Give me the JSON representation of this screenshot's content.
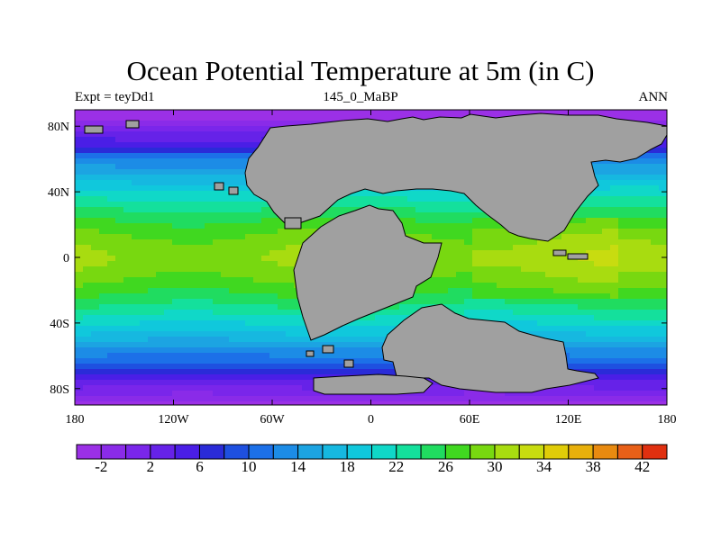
{
  "title": "Ocean Potential Temperature at 5m (in C)",
  "subtitle_left": "Expt = teyDd1",
  "subtitle_center": "145_0_MaBP",
  "subtitle_right": "ANN",
  "chart_data": {
    "type": "heatmap",
    "title": "Ocean Potential Temperature at 5m (in C)",
    "variable": "Ocean Potential Temperature at 5m",
    "units": "C",
    "experiment": "teyDd1",
    "period": "145_0_MaBP",
    "season": "ANN",
    "xlim": [
      -180,
      180
    ],
    "ylim": [
      -90,
      90
    ],
    "x_ticks": [
      {
        "value": -180,
        "label": "180"
      },
      {
        "value": -120,
        "label": "120W"
      },
      {
        "value": -60,
        "label": "60W"
      },
      {
        "value": 0,
        "label": "0"
      },
      {
        "value": 60,
        "label": "60E"
      },
      {
        "value": 120,
        "label": "120E"
      },
      {
        "value": 180,
        "label": "180"
      }
    ],
    "y_ticks": [
      {
        "value": 80,
        "label": "80N"
      },
      {
        "value": 40,
        "label": "40N"
      },
      {
        "value": 0,
        "label": "0"
      },
      {
        "value": -40,
        "label": "40S"
      },
      {
        "value": -80,
        "label": "80S"
      }
    ],
    "colorbar": {
      "levels": [
        -4,
        -2,
        0,
        2,
        4,
        6,
        8,
        10,
        12,
        14,
        16,
        18,
        20,
        22,
        24,
        26,
        28,
        30,
        32,
        34,
        36,
        38,
        40,
        42,
        44
      ],
      "labels": [
        "-2",
        "2",
        "6",
        "10",
        "14",
        "18",
        "22",
        "26",
        "30",
        "34",
        "38",
        "42"
      ],
      "colors": [
        "#9b30e6",
        "#8a2be8",
        "#7a26ea",
        "#6622e8",
        "#4a1ee6",
        "#2a2bd8",
        "#1e50e0",
        "#1c70e8",
        "#1c8ce6",
        "#1ca4e2",
        "#16b8e0",
        "#10c8dc",
        "#10d8c8",
        "#14e09c",
        "#20dc60",
        "#40d820",
        "#78d810",
        "#a8dc10",
        "#c8dc10",
        "#e0cc08",
        "#e8b00c",
        "#e88a10",
        "#e86018",
        "#e03010"
      ],
      "land_color": "#a0a0a0"
    },
    "field_description": "Zonal-mean-like SST: near -2 to 2 C at the poles, about 22-28 C in the subtropics, 28-32 C near the equator; land masses (Laurasia in the north, Gondwana in the south) masked grey."
  }
}
